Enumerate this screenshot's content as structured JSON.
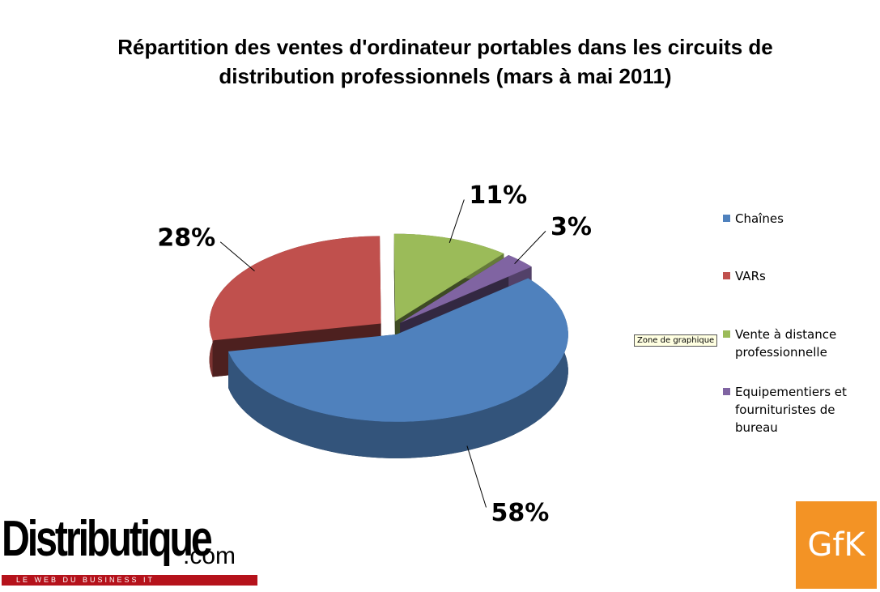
{
  "chart_data": {
    "type": "pie",
    "title": "Répartition des ventes d'ordinateur portables dans les circuits de distribution professionnels (mars à mai 2011)",
    "categories": [
      "Chaînes",
      "VARs",
      "Vente à distance professionnelle",
      "Equipementiers et fournituristes de bureau"
    ],
    "values": [
      58,
      28,
      11,
      3
    ],
    "value_labels": [
      "58%",
      "28%",
      "11%",
      "3%"
    ],
    "colors": [
      "#4f81bd",
      "#c0504d",
      "#9bbb59",
      "#8064a2"
    ],
    "legend": "right"
  },
  "tooltip": "Zone de graphique",
  "logos": {
    "site": "Distributique",
    "domain": ".com",
    "tagline": "LE WEB DU BUSINESS IT",
    "partner": "GfK"
  }
}
